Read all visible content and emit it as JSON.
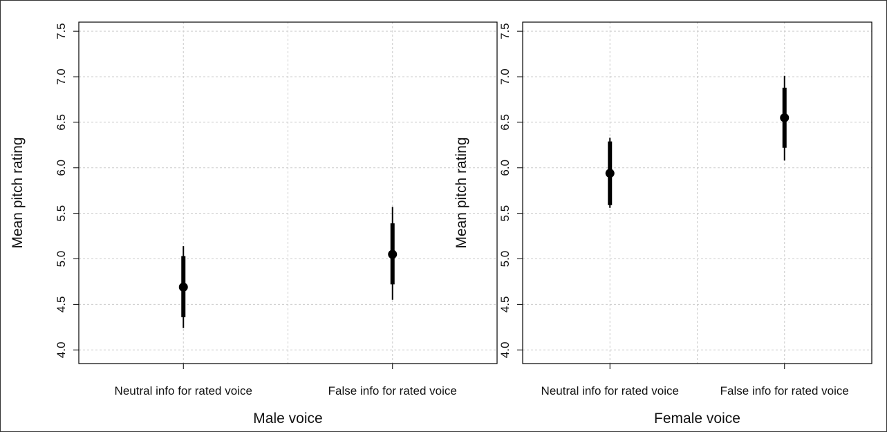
{
  "chart_data": [
    {
      "type": "scatter",
      "xlabel": "Male voice",
      "ylabel": "Mean pitch rating",
      "ylim": [
        3.85,
        7.6
      ],
      "y_ticks": [
        "4.0",
        "4.5",
        "5.0",
        "5.5",
        "6.0",
        "6.5",
        "7.0",
        "7.5"
      ],
      "categories": [
        "Neutral info for rated voice",
        "False info for rated voice"
      ],
      "points": [
        {
          "category": "Neutral info for rated voice",
          "mean": 4.69,
          "inner": [
            4.36,
            5.03
          ],
          "outer": [
            4.24,
            5.14
          ]
        },
        {
          "category": "False info for rated voice",
          "mean": 5.05,
          "inner": [
            4.72,
            5.39
          ],
          "outer": [
            4.55,
            5.57
          ]
        }
      ],
      "grid": true,
      "grid_style": "dashed"
    },
    {
      "type": "scatter",
      "xlabel": "Female voice",
      "ylabel": "Mean pitch rating",
      "ylim": [
        3.85,
        7.6
      ],
      "y_ticks": [
        "4.0",
        "4.5",
        "5.0",
        "5.5",
        "6.0",
        "6.5",
        "7.0",
        "7.5"
      ],
      "categories": [
        "Neutral info for rated voice",
        "False info for rated voice"
      ],
      "points": [
        {
          "category": "Neutral info for rated voice",
          "mean": 5.94,
          "inner": [
            5.59,
            6.29
          ],
          "outer": [
            5.56,
            6.33
          ]
        },
        {
          "category": "False info for rated voice",
          "mean": 6.55,
          "inner": [
            6.22,
            6.88
          ],
          "outer": [
            6.08,
            7.01
          ]
        }
      ],
      "grid": true,
      "grid_style": "dashed"
    }
  ],
  "colors": {
    "marker": "#000000",
    "grid": "#cccccc",
    "axes": "#000000"
  }
}
